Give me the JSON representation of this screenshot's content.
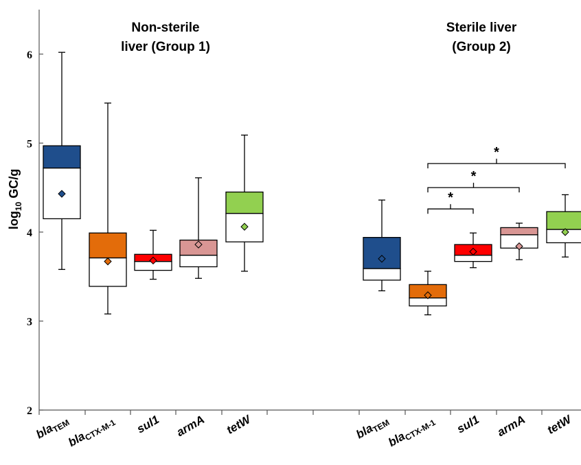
{
  "chart_data": {
    "type": "box",
    "ylabel": "log",
    "ylabel_sub": "10",
    "ylabel_tail": " GC/g",
    "ylim": [
      2,
      6.5
    ],
    "yticks": [
      2,
      3,
      4,
      5,
      6
    ],
    "groups": [
      {
        "title_lines": [
          "Non-sterile",
          "liver (Group 1)"
        ],
        "boxes": [
          {
            "label": "bla",
            "sub": "TEM",
            "color": "#1f4e8c",
            "whisker_low": 3.58,
            "q1": 4.15,
            "median": 4.72,
            "q3": 4.97,
            "whisker_high": 6.02,
            "mean": 4.43
          },
          {
            "label": "bla",
            "sub": "CTX-M-1",
            "color": "#e36c0a",
            "whisker_low": 3.08,
            "q1": 3.39,
            "median": 3.71,
            "q3": 3.99,
            "whisker_high": 5.45,
            "mean": 3.67
          },
          {
            "label": "sul1",
            "sub": "",
            "color": "#ff0000",
            "whisker_low": 3.47,
            "q1": 3.57,
            "median": 3.67,
            "q3": 3.75,
            "whisker_high": 4.02,
            "mean": 3.68
          },
          {
            "label": "armA",
            "sub": "",
            "color": "#d99694",
            "whisker_low": 3.48,
            "q1": 3.61,
            "median": 3.74,
            "q3": 3.91,
            "whisker_high": 4.61,
            "mean": 3.86
          },
          {
            "label": "tetW",
            "sub": "",
            "color": "#92d050",
            "whisker_low": 3.56,
            "q1": 3.89,
            "median": 4.21,
            "q3": 4.45,
            "whisker_high": 5.09,
            "mean": 4.06
          }
        ]
      },
      {
        "title_lines": [
          "Sterile liver",
          "(Group 2)"
        ],
        "boxes": [
          {
            "label": "bla",
            "sub": "TEM",
            "color": "#1f4e8c",
            "whisker_low": 3.34,
            "q1": 3.46,
            "median": 3.59,
            "q3": 3.94,
            "whisker_high": 4.36,
            "mean": 3.7
          },
          {
            "label": "bla",
            "sub": "CTX-M-1",
            "color": "#e36c0a",
            "whisker_low": 3.07,
            "q1": 3.17,
            "median": 3.26,
            "q3": 3.41,
            "whisker_high": 3.56,
            "mean": 3.29
          },
          {
            "label": "sul1",
            "sub": "",
            "color": "#ff0000",
            "whisker_low": 3.6,
            "q1": 3.67,
            "median": 3.74,
            "q3": 3.86,
            "whisker_high": 3.99,
            "mean": 3.78
          },
          {
            "label": "armA",
            "sub": "",
            "color": "#d99694",
            "whisker_low": 3.69,
            "q1": 3.82,
            "median": 3.97,
            "q3": 4.05,
            "whisker_high": 4.1,
            "mean": 3.84
          },
          {
            "label": "tetW",
            "sub": "",
            "color": "#92d050",
            "whisker_low": 3.72,
            "q1": 3.88,
            "median": 4.03,
            "q3": 4.23,
            "whisker_high": 4.42,
            "mean": 4.0
          }
        ]
      }
    ],
    "significance": [
      {
        "group": 1,
        "from": 1,
        "to": 2,
        "level": 4.26,
        "label": "*"
      },
      {
        "group": 1,
        "from": 1,
        "to": 3,
        "level": 4.5,
        "label": "*"
      },
      {
        "group": 1,
        "from": 1,
        "to": 4,
        "level": 4.77,
        "label": "*"
      }
    ]
  }
}
